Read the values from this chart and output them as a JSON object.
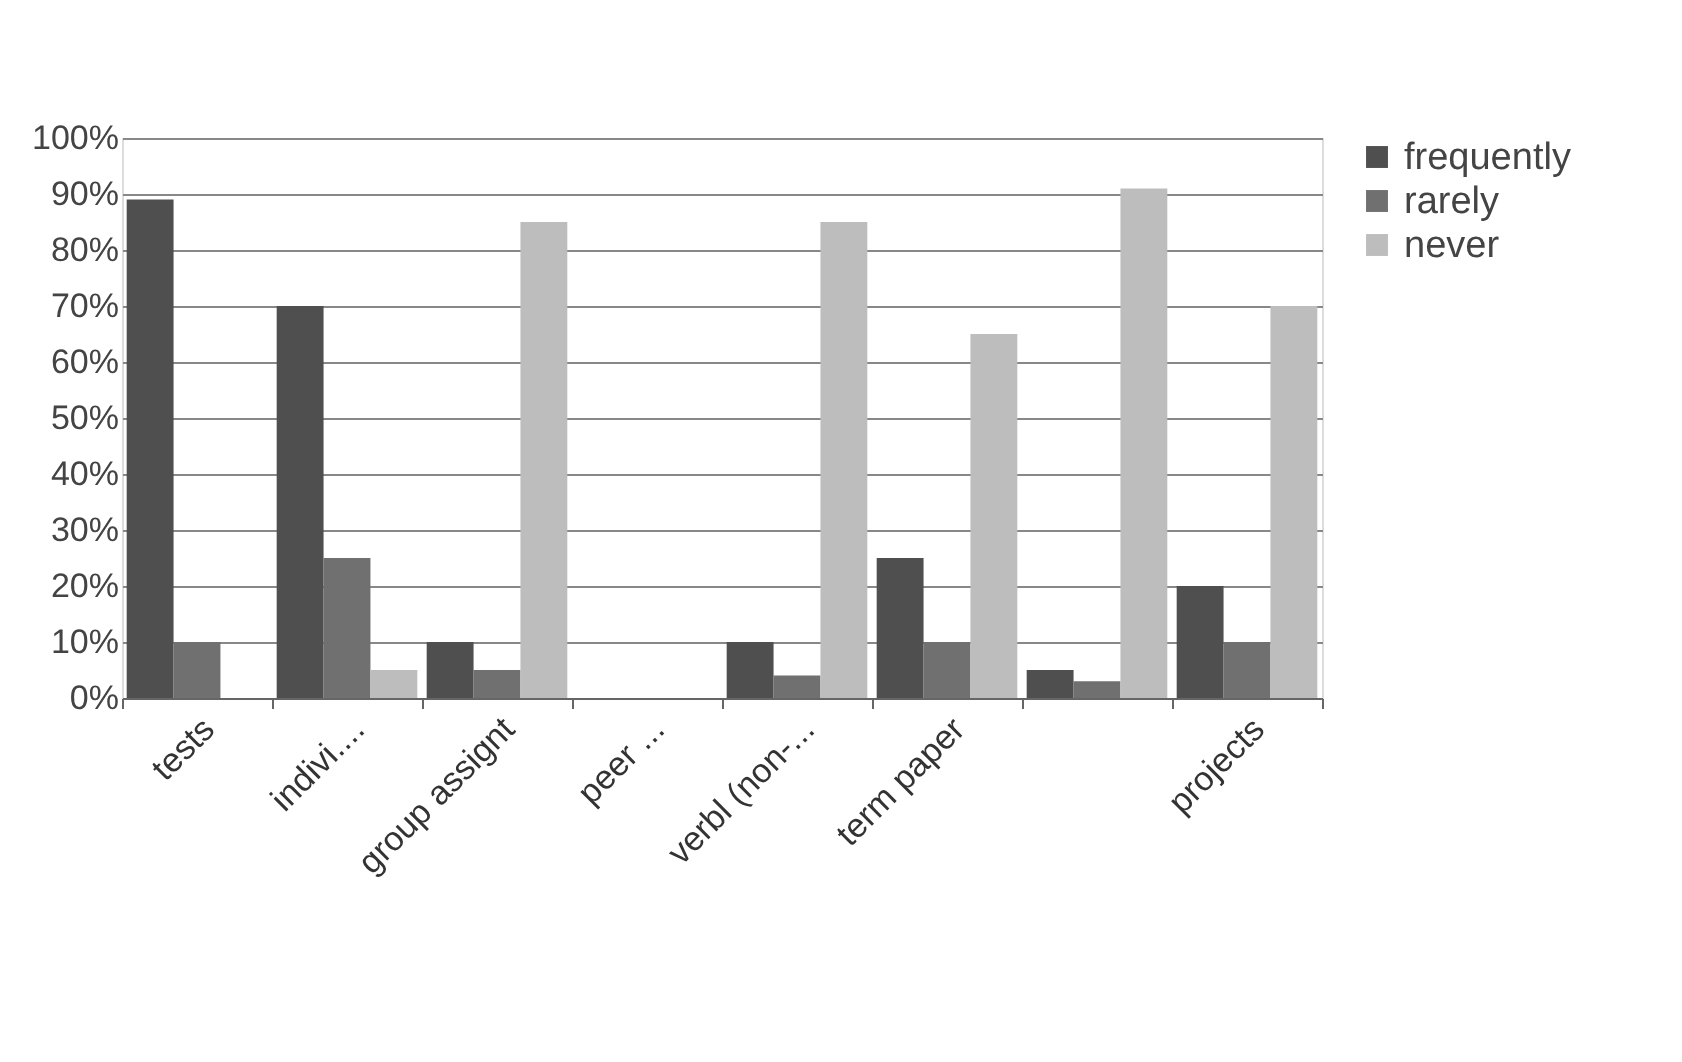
{
  "chart_data": {
    "type": "bar",
    "categories": [
      "tests",
      "indivi....",
      "group assignt",
      "peer ...",
      "verbl (non-...",
      "term paper",
      null,
      "projects"
    ],
    "series": [
      {
        "name": "frequently",
        "color": "#4f4f4f",
        "values": [
          89,
          70,
          10,
          null,
          10,
          25,
          5,
          20
        ]
      },
      {
        "name": "rarely",
        "color": "#707070",
        "values": [
          10,
          25,
          5,
          null,
          4,
          10,
          3,
          10
        ]
      },
      {
        "name": "never",
        "color": "#bdbdbd",
        "values": [
          null,
          5,
          85,
          null,
          85,
          65,
          91,
          70
        ]
      }
    ],
    "ylim": [
      0,
      100
    ],
    "yticks": [
      {
        "value": 0,
        "label": "0%"
      },
      {
        "value": 10,
        "label": "10%"
      },
      {
        "value": 20,
        "label": "20%"
      },
      {
        "value": 30,
        "label": "30%"
      },
      {
        "value": 40,
        "label": "40%"
      },
      {
        "value": 50,
        "label": "50%"
      },
      {
        "value": 60,
        "label": "60%"
      },
      {
        "value": 70,
        "label": "70%"
      },
      {
        "value": 80,
        "label": "80%"
      },
      {
        "value": 90,
        "label": "90%"
      },
      {
        "value": 100,
        "label": "100%"
      }
    ],
    "grid": "y",
    "legend": "right"
  }
}
